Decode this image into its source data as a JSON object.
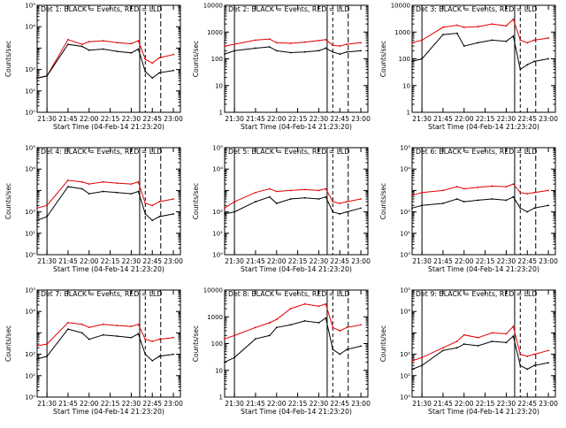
{
  "colors": {
    "events": "#000000",
    "lld": "#e00000",
    "axes": "#000000",
    "background": "#ffffff"
  },
  "chart_data": [
    {
      "type": "line",
      "title": "Det 1: BLACK = Events, RED = LLD",
      "xlabel": "Start Time (04-Feb-14 21:23:20)",
      "ylabel": "Counts/sec",
      "yscale": "log",
      "ylim": [
        1,
        100000
      ],
      "yticks": [
        {
          "v": 1,
          "label": "10⁰"
        },
        {
          "v": 10,
          "label": "10¹"
        },
        {
          "v": 100,
          "label": "10²"
        },
        {
          "v": 10000,
          "label": "10⁴"
        },
        {
          "v": 100000,
          "label": "10⁵"
        }
      ],
      "xticks": [
        "21:30",
        "21:45",
        "22:00",
        "22:15",
        "22:30",
        "22:45",
        "23:00"
      ],
      "x": [
        "21:23",
        "21:30",
        "21:45",
        "21:55",
        "22:00",
        "22:10",
        "22:20",
        "22:30",
        "22:35",
        "22:40",
        "22:45",
        "22:50",
        "23:00"
      ],
      "series": [
        {
          "name": "Events",
          "values": [
            40,
            50,
            1500,
            1200,
            800,
            900,
            700,
            600,
            900,
            80,
            40,
            70,
            90
          ]
        },
        {
          "name": "LLD",
          "values": [
            40,
            50,
            2500,
            1500,
            2000,
            2200,
            1800,
            1600,
            2200,
            300,
            200,
            350,
            500
          ]
        }
      ]
    },
    {
      "type": "line",
      "title": "Det 2: BLACK = Events, RED = LLD",
      "xlabel": "Start Time (04-Feb-14 21:23:20)",
      "ylabel": "Counts/sec",
      "yscale": "log",
      "ylim": [
        1,
        10000
      ],
      "yticks": [
        {
          "v": 1,
          "label": "1"
        },
        {
          "v": 10,
          "label": "10"
        },
        {
          "v": 100,
          "label": "100"
        },
        {
          "v": 1000,
          "label": "1000"
        },
        {
          "v": 10000,
          "label": "10000"
        }
      ],
      "xticks": [
        "21:30",
        "21:45",
        "22:00",
        "22:15",
        "22:30",
        "22:45",
        "23:00"
      ],
      "x": [
        "21:23",
        "21:30",
        "21:45",
        "21:55",
        "22:00",
        "22:10",
        "22:20",
        "22:30",
        "22:35",
        "22:40",
        "22:45",
        "22:50",
        "23:00"
      ],
      "series": [
        {
          "name": "Events",
          "values": [
            150,
            200,
            250,
            280,
            200,
            170,
            180,
            200,
            250,
            180,
            150,
            180,
            200
          ]
        },
        {
          "name": "LLD",
          "values": [
            300,
            350,
            500,
            550,
            400,
            380,
            420,
            480,
            520,
            320,
            300,
            350,
            400
          ]
        }
      ]
    },
    {
      "type": "line",
      "title": "Det 3: BLACK = Events, RED = LLD",
      "xlabel": "Start Time (04-Feb-14 21:23:20)",
      "ylabel": "Counts/sec",
      "yscale": "log",
      "ylim": [
        1,
        10000
      ],
      "yticks": [
        {
          "v": 1,
          "label": "1"
        },
        {
          "v": 10,
          "label": "10"
        },
        {
          "v": 100,
          "label": "100"
        },
        {
          "v": 1000,
          "label": "1000"
        },
        {
          "v": 10000,
          "label": "10000"
        }
      ],
      "xticks": [
        "21:30",
        "21:45",
        "22:00",
        "22:15",
        "22:30",
        "22:45",
        "23:00"
      ],
      "x": [
        "21:23",
        "21:30",
        "21:45",
        "21:55",
        "22:00",
        "22:10",
        "22:20",
        "22:30",
        "22:35",
        "22:40",
        "22:45",
        "22:50",
        "23:00"
      ],
      "series": [
        {
          "name": "Events",
          "values": [
            80,
            100,
            800,
            900,
            300,
            400,
            500,
            450,
            700,
            40,
            60,
            80,
            100
          ]
        },
        {
          "name": "LLD",
          "values": [
            400,
            500,
            1500,
            1800,
            1500,
            1600,
            2000,
            1700,
            3000,
            500,
            400,
            500,
            600
          ]
        }
      ]
    },
    {
      "type": "line",
      "title": "Det 4: BLACK = Events, RED = LLD",
      "xlabel": "Start Time (04-Feb-14 21:23:20)",
      "ylabel": "Counts/sec",
      "yscale": "log",
      "ylim": [
        1,
        100000
      ],
      "yticks": [
        {
          "v": 1,
          "label": "10⁰"
        },
        {
          "v": 10,
          "label": "10¹"
        },
        {
          "v": 100,
          "label": "10²"
        },
        {
          "v": 10000,
          "label": "10⁴"
        },
        {
          "v": 100000,
          "label": "10⁵"
        }
      ],
      "xticks": [
        "21:30",
        "21:45",
        "22:00",
        "22:15",
        "22:30",
        "22:45",
        "23:00"
      ],
      "x": [
        "21:23",
        "21:30",
        "21:45",
        "21:55",
        "22:00",
        "22:10",
        "22:20",
        "22:30",
        "22:35",
        "22:40",
        "22:45",
        "22:50",
        "23:00"
      ],
      "series": [
        {
          "name": "Events",
          "values": [
            40,
            60,
            1500,
            1200,
            700,
            900,
            800,
            700,
            900,
            80,
            40,
            60,
            80
          ]
        },
        {
          "name": "LLD",
          "values": [
            150,
            200,
            3000,
            2500,
            2000,
            2500,
            2200,
            2000,
            2500,
            250,
            200,
            300,
            400
          ]
        }
      ]
    },
    {
      "type": "line",
      "title": "Det 5: BLACK = Events, RED = LLD",
      "xlabel": "Start Time (04-Feb-14 21:23:20)",
      "ylabel": "Counts/sec",
      "yscale": "log",
      "ylim": [
        1,
        100000
      ],
      "yticks": [
        {
          "v": 1,
          "label": "10⁰"
        },
        {
          "v": 10,
          "label": "10¹"
        },
        {
          "v": 100,
          "label": "10²"
        },
        {
          "v": 10000,
          "label": "10⁴"
        },
        {
          "v": 100000,
          "label": "10⁵"
        }
      ],
      "xticks": [
        "21:30",
        "21:45",
        "22:00",
        "22:15",
        "22:30",
        "22:45",
        "23:00"
      ],
      "x": [
        "21:23",
        "21:30",
        "21:45",
        "21:55",
        "22:00",
        "22:10",
        "22:20",
        "22:30",
        "22:35",
        "22:40",
        "22:45",
        "22:50",
        "23:00"
      ],
      "series": [
        {
          "name": "Events",
          "values": [
            80,
            100,
            300,
            500,
            250,
            400,
            450,
            400,
            500,
            100,
            80,
            100,
            150
          ]
        },
        {
          "name": "LLD",
          "values": [
            150,
            300,
            800,
            1200,
            900,
            1000,
            1100,
            1000,
            1200,
            300,
            250,
            300,
            400
          ]
        }
      ]
    },
    {
      "type": "line",
      "title": "Det 6: BLACK = Events, RED = LLD",
      "xlabel": "Start Time (04-Feb-14 21:23:20)",
      "ylabel": "Counts/sec",
      "yscale": "log",
      "ylim": [
        1,
        100000
      ],
      "yticks": [
        {
          "v": 1,
          "label": "10⁰"
        },
        {
          "v": 10,
          "label": "10¹"
        },
        {
          "v": 100,
          "label": "10²"
        },
        {
          "v": 10000,
          "label": "10⁴"
        },
        {
          "v": 100000,
          "label": "10⁵"
        }
      ],
      "xticks": [
        "21:30",
        "21:45",
        "22:00",
        "22:15",
        "22:30",
        "22:45",
        "23:00"
      ],
      "x": [
        "21:23",
        "21:30",
        "21:45",
        "21:55",
        "22:00",
        "22:10",
        "22:20",
        "22:30",
        "22:35",
        "22:40",
        "22:45",
        "22:50",
        "23:00"
      ],
      "series": [
        {
          "name": "Events",
          "values": [
            150,
            200,
            250,
            400,
            300,
            350,
            400,
            350,
            500,
            150,
            100,
            150,
            200
          ]
        },
        {
          "name": "LLD",
          "values": [
            600,
            800,
            1000,
            1500,
            1200,
            1400,
            1600,
            1500,
            2000,
            800,
            700,
            800,
            1000
          ]
        }
      ]
    },
    {
      "type": "line",
      "title": "Det 7: BLACK = Events, RED = LLD",
      "xlabel": "Start Time (04-Feb-14 21:23:20)",
      "ylabel": "Counts/sec",
      "yscale": "log",
      "ylim": [
        1,
        100000
      ],
      "yticks": [
        {
          "v": 1,
          "label": "10⁰"
        },
        {
          "v": 10,
          "label": "10¹"
        },
        {
          "v": 100,
          "label": "10²"
        },
        {
          "v": 10000,
          "label": "10⁴"
        },
        {
          "v": 100000,
          "label": "10⁵"
        }
      ],
      "xticks": [
        "21:30",
        "21:45",
        "22:00",
        "22:15",
        "22:30",
        "22:45",
        "23:00"
      ],
      "x": [
        "21:23",
        "21:30",
        "21:45",
        "21:55",
        "22:00",
        "22:10",
        "22:20",
        "22:30",
        "22:35",
        "22:40",
        "22:45",
        "22:50",
        "23:00"
      ],
      "series": [
        {
          "name": "Events",
          "values": [
            60,
            80,
            1500,
            1000,
            500,
            800,
            700,
            600,
            900,
            100,
            50,
            80,
            100
          ]
        },
        {
          "name": "LLD",
          "values": [
            250,
            300,
            3000,
            2500,
            1800,
            2500,
            2200,
            2000,
            2500,
            500,
            400,
            500,
            600
          ]
        }
      ]
    },
    {
      "type": "line",
      "title": "Det 8: BLACK = Events, RED = LLD",
      "xlabel": "Start Time (04-Feb-14 21:23:20)",
      "ylabel": "Counts/sec",
      "yscale": "log",
      "ylim": [
        1,
        10000
      ],
      "yticks": [
        {
          "v": 1,
          "label": "1"
        },
        {
          "v": 10,
          "label": "10"
        },
        {
          "v": 100,
          "label": "100"
        },
        {
          "v": 1000,
          "label": "1000"
        },
        {
          "v": 10000,
          "label": "10000"
        }
      ],
      "xticks": [
        "21:30",
        "21:45",
        "22:00",
        "22:15",
        "22:30",
        "22:45",
        "23:00"
      ],
      "x": [
        "21:23",
        "21:30",
        "21:45",
        "21:55",
        "22:00",
        "22:10",
        "22:20",
        "22:30",
        "22:35",
        "22:40",
        "22:45",
        "22:50",
        "23:00"
      ],
      "series": [
        {
          "name": "Events",
          "values": [
            20,
            30,
            150,
            200,
            400,
            500,
            700,
            600,
            900,
            60,
            40,
            60,
            80
          ]
        },
        {
          "name": "LLD",
          "values": [
            150,
            200,
            400,
            600,
            800,
            2000,
            3000,
            2500,
            3000,
            400,
            300,
            400,
            500
          ]
        }
      ]
    },
    {
      "type": "line",
      "title": "Det 9: BLACK = Events, RED = LLD",
      "xlabel": "Start Time (04-Feb-14 21:23:20)",
      "ylabel": "Counts/sec",
      "yscale": "log",
      "ylim": [
        1,
        100000
      ],
      "yticks": [
        {
          "v": 1,
          "label": "10⁰"
        },
        {
          "v": 10,
          "label": "10¹"
        },
        {
          "v": 100,
          "label": "10²"
        },
        {
          "v": 10000,
          "label": "10⁴"
        },
        {
          "v": 100000,
          "label": "10⁵"
        }
      ],
      "xticks": [
        "21:30",
        "21:45",
        "22:00",
        "22:15",
        "22:30",
        "22:45",
        "23:00"
      ],
      "x": [
        "21:23",
        "21:30",
        "21:45",
        "21:55",
        "22:00",
        "22:10",
        "22:20",
        "22:30",
        "22:35",
        "22:40",
        "22:45",
        "22:50",
        "23:00"
      ],
      "series": [
        {
          "name": "Events",
          "values": [
            20,
            30,
            150,
            200,
            300,
            250,
            400,
            350,
            700,
            30,
            20,
            30,
            40
          ]
        },
        {
          "name": "LLD",
          "values": [
            50,
            70,
            200,
            400,
            800,
            600,
            1000,
            900,
            2000,
            100,
            80,
            100,
            150
          ]
        }
      ]
    }
  ]
}
